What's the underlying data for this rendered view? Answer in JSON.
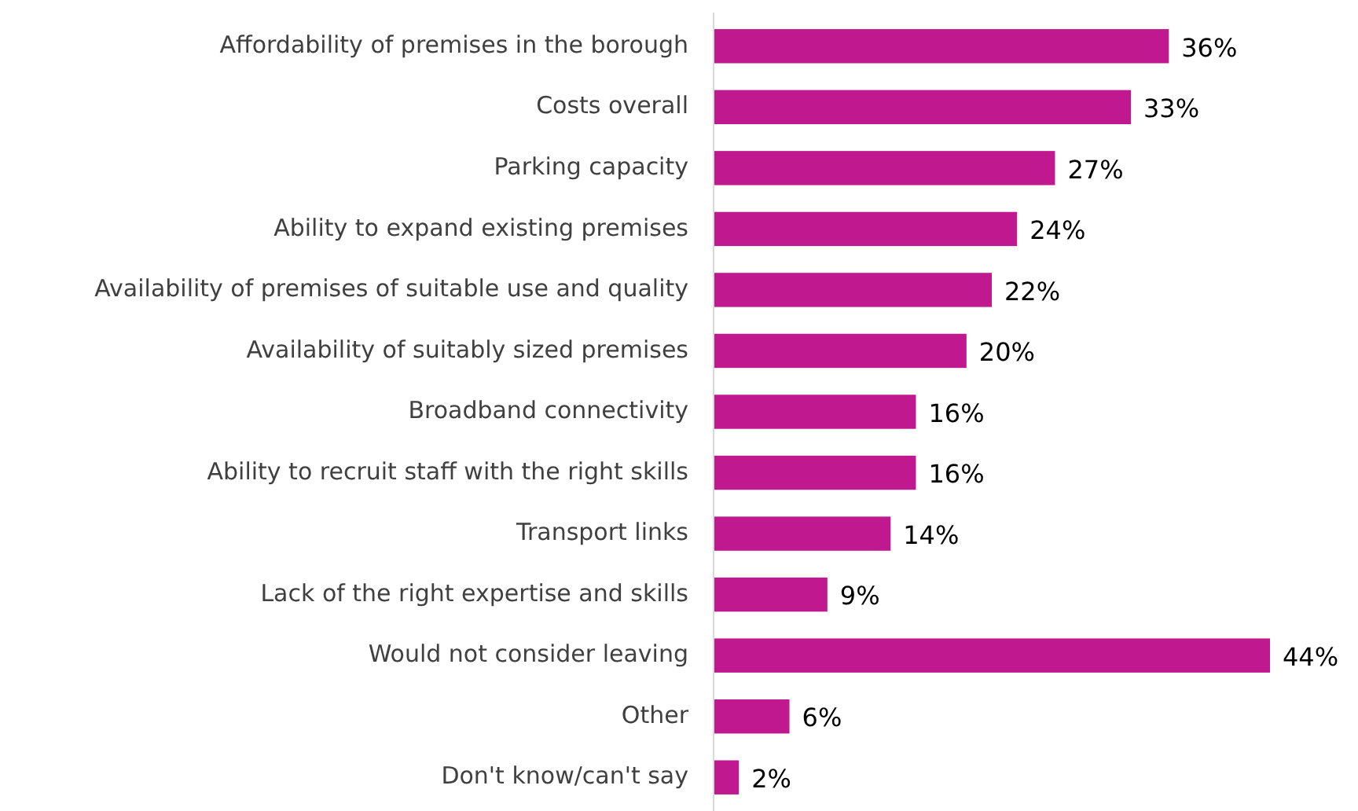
{
  "chart_data": {
    "type": "bar",
    "orientation": "horizontal",
    "categories": [
      "Affordability of premises in the borough",
      "Costs overall",
      "Parking capacity",
      "Ability to expand existing premises",
      "Availability of premises of suitable use and quality",
      "Availability of suitably sized premises",
      "Broadband connectivity",
      "Ability to recruit staff with the right skills",
      "Transport links",
      "Lack of the right expertise and skills",
      "Would not consider leaving",
      "Other",
      "Don't know/can't say"
    ],
    "values": [
      36,
      33,
      27,
      24,
      22,
      20,
      16,
      16,
      14,
      9,
      44,
      6,
      2
    ],
    "value_labels": [
      "36%",
      "33%",
      "27%",
      "24%",
      "22%",
      "20%",
      "16%",
      "16%",
      "14%",
      "9%",
      "44%",
      "6%",
      "2%"
    ],
    "color": "#c0198f"
  }
}
